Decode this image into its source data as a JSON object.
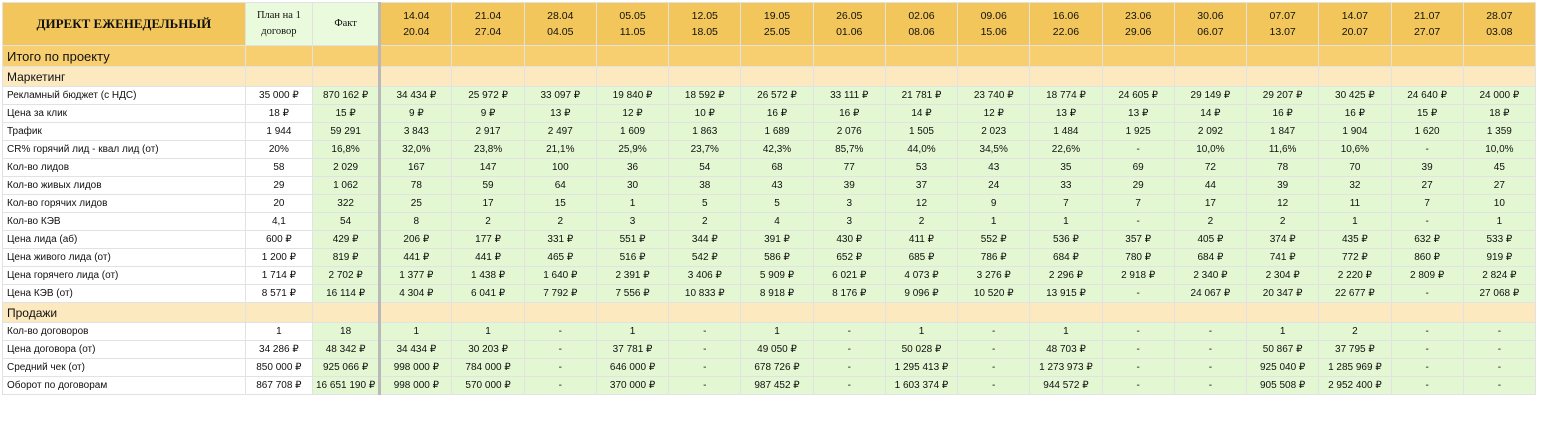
{
  "header": {
    "title": "ДИРЕКТ ЕЖЕНЕДЕЛЬНЫЙ",
    "plan_line1": "План на 1",
    "plan_line2": "договор",
    "fact": "Факт",
    "weeks": [
      {
        "from": "14.04",
        "to": "20.04"
      },
      {
        "from": "21.04",
        "to": "27.04"
      },
      {
        "from": "28.04",
        "to": "04.05"
      },
      {
        "from": "05.05",
        "to": "11.05"
      },
      {
        "from": "12.05",
        "to": "18.05"
      },
      {
        "from": "19.05",
        "to": "25.05"
      },
      {
        "from": "26.05",
        "to": "01.06"
      },
      {
        "from": "02.06",
        "to": "08.06"
      },
      {
        "from": "09.06",
        "to": "15.06"
      },
      {
        "from": "16.06",
        "to": "22.06"
      },
      {
        "from": "23.06",
        "to": "29.06"
      },
      {
        "from": "30.06",
        "to": "06.07"
      },
      {
        "from": "07.07",
        "to": "13.07"
      },
      {
        "from": "14.07",
        "to": "20.07"
      },
      {
        "from": "21.07",
        "to": "27.07"
      },
      {
        "from": "28.07",
        "to": "03.08"
      }
    ]
  },
  "sections": [
    {
      "type": "section",
      "label": "Итого по проекту"
    },
    {
      "type": "sub",
      "label": "Маркетинг"
    },
    {
      "type": "row",
      "label": "Рекламный бюджет (с НДС)",
      "plan": "35 000 ₽",
      "fact": "870 162 ₽",
      "values": [
        "34 434 ₽",
        "25 972 ₽",
        "33 097 ₽",
        "19 840 ₽",
        "18 592 ₽",
        "26 572 ₽",
        "33 111 ₽",
        "21 781 ₽",
        "23 740 ₽",
        "18 774 ₽",
        "24 605 ₽",
        "29 149 ₽",
        "29 207 ₽",
        "30 425 ₽",
        "24 640 ₽",
        "24 000 ₽"
      ]
    },
    {
      "type": "row",
      "label": "Цена за клик",
      "plan": "18 ₽",
      "fact": "15 ₽",
      "values": [
        "9 ₽",
        "9 ₽",
        "13 ₽",
        "12 ₽",
        "10 ₽",
        "16 ₽",
        "16 ₽",
        "14 ₽",
        "12 ₽",
        "13 ₽",
        "13 ₽",
        "14 ₽",
        "16 ₽",
        "16 ₽",
        "15 ₽",
        "18 ₽"
      ]
    },
    {
      "type": "row",
      "label": "Трафик",
      "plan": "1 944",
      "fact": "59 291",
      "values": [
        "3 843",
        "2 917",
        "2 497",
        "1 609",
        "1 863",
        "1 689",
        "2 076",
        "1 505",
        "2 023",
        "1 484",
        "1 925",
        "2 092",
        "1 847",
        "1 904",
        "1 620",
        "1 359"
      ]
    },
    {
      "type": "row",
      "label": "CR% горячий лид - квал лид (от)",
      "plan": "20%",
      "fact": "16,8%",
      "values": [
        "32,0%",
        "23,8%",
        "21,1%",
        "25,9%",
        "23,7%",
        "42,3%",
        "85,7%",
        "44,0%",
        "34,5%",
        "22,6%",
        "-",
        "10,0%",
        "11,6%",
        "10,6%",
        "-",
        "10,0%"
      ]
    },
    {
      "type": "row",
      "label": "Кол-во лидов",
      "plan": "58",
      "fact": "2 029",
      "values": [
        "167",
        "147",
        "100",
        "36",
        "54",
        "68",
        "77",
        "53",
        "43",
        "35",
        "69",
        "72",
        "78",
        "70",
        "39",
        "45"
      ]
    },
    {
      "type": "row",
      "label": "Кол-во живых лидов",
      "plan": "29",
      "fact": "1 062",
      "values": [
        "78",
        "59",
        "64",
        "30",
        "38",
        "43",
        "39",
        "37",
        "24",
        "33",
        "29",
        "44",
        "39",
        "32",
        "27",
        "27"
      ]
    },
    {
      "type": "row",
      "label": "Кол-во горячих лидов",
      "plan": "20",
      "fact": "322",
      "values": [
        "25",
        "17",
        "15",
        "1",
        "5",
        "5",
        "3",
        "12",
        "9",
        "7",
        "7",
        "17",
        "12",
        "11",
        "7",
        "10"
      ]
    },
    {
      "type": "row",
      "label": "Кол-во КЭВ",
      "plan": "4,1",
      "fact": "54",
      "values": [
        "8",
        "2",
        "2",
        "3",
        "2",
        "4",
        "3",
        "2",
        "1",
        "1",
        "-",
        "2",
        "2",
        "1",
        "-",
        "1"
      ]
    },
    {
      "type": "row",
      "label": "Цена лида (аб)",
      "plan": "600 ₽",
      "fact": "429 ₽",
      "values": [
        "206 ₽",
        "177 ₽",
        "331 ₽",
        "551 ₽",
        "344 ₽",
        "391 ₽",
        "430 ₽",
        "411 ₽",
        "552 ₽",
        "536 ₽",
        "357 ₽",
        "405 ₽",
        "374 ₽",
        "435 ₽",
        "632 ₽",
        "533 ₽"
      ]
    },
    {
      "type": "row",
      "label": "Цена живого лида (от)",
      "plan": "1 200 ₽",
      "fact": "819 ₽",
      "values": [
        "441 ₽",
        "441 ₽",
        "465 ₽",
        "516 ₽",
        "542 ₽",
        "586 ₽",
        "652 ₽",
        "685 ₽",
        "786 ₽",
        "684 ₽",
        "780 ₽",
        "684 ₽",
        "741 ₽",
        "772 ₽",
        "860 ₽",
        "919 ₽"
      ]
    },
    {
      "type": "row",
      "label": "Цена горячего лида (от)",
      "plan": "1 714 ₽",
      "fact": "2 702 ₽",
      "values": [
        "1 377 ₽",
        "1 438 ₽",
        "1 640 ₽",
        "2 391 ₽",
        "3 406 ₽",
        "5 909 ₽",
        "6 021 ₽",
        "4 073 ₽",
        "3 276 ₽",
        "2 296 ₽",
        "2 918 ₽",
        "2 340 ₽",
        "2 304 ₽",
        "2 220 ₽",
        "2 809 ₽",
        "2 824 ₽"
      ]
    },
    {
      "type": "row",
      "label": "Цена КЭВ (от)",
      "plan": "8 571 ₽",
      "fact": "16 114 ₽",
      "values": [
        "4 304 ₽",
        "6 041 ₽",
        "7 792 ₽",
        "7 556 ₽",
        "10 833 ₽",
        "8 918 ₽",
        "8 176 ₽",
        "9 096 ₽",
        "10 520 ₽",
        "13 915 ₽",
        "-",
        "24 067 ₽",
        "20 347 ₽",
        "22 677 ₽",
        "-",
        "27 068 ₽"
      ]
    },
    {
      "type": "sub",
      "label": "Продажи"
    },
    {
      "type": "row",
      "label": "Кол-во договоров",
      "plan": "1",
      "fact": "18",
      "values": [
        "1",
        "1",
        "-",
        "1",
        "-",
        "1",
        "-",
        "1",
        "-",
        "1",
        "-",
        "-",
        "1",
        "2",
        "-",
        "-"
      ]
    },
    {
      "type": "row",
      "label": "Цена договора (от)",
      "plan": "34 286 ₽",
      "fact": "48 342 ₽",
      "values": [
        "34 434 ₽",
        "30 203 ₽",
        "-",
        "37 781 ₽",
        "-",
        "49 050 ₽",
        "-",
        "50 028 ₽",
        "-",
        "48 703 ₽",
        "-",
        "-",
        "50 867 ₽",
        "37 795 ₽",
        "-",
        "-"
      ]
    },
    {
      "type": "row",
      "label": "Средний чек (от)",
      "plan": "850 000 ₽",
      "fact": "925 066 ₽",
      "values": [
        "998 000 ₽",
        "784 000 ₽",
        "-",
        "646 000 ₽",
        "-",
        "678 726 ₽",
        "-",
        "1 295 413 ₽",
        "-",
        "1 273 973 ₽",
        "-",
        "-",
        "925 040 ₽",
        "1 285 969 ₽",
        "-",
        "-"
      ]
    },
    {
      "type": "row",
      "label": "Оборот по договорам",
      "plan": "867 708 ₽",
      "fact": "16 651 190 ₽",
      "values": [
        "998 000 ₽",
        "570 000 ₽",
        "-",
        "370 000 ₽",
        "-",
        "987 452 ₽",
        "-",
        "1 603 374 ₽",
        "-",
        "944 572 ₽",
        "-",
        "-",
        "905 508 ₽",
        "2 952 400 ₽",
        "-",
        "-"
      ]
    }
  ]
}
